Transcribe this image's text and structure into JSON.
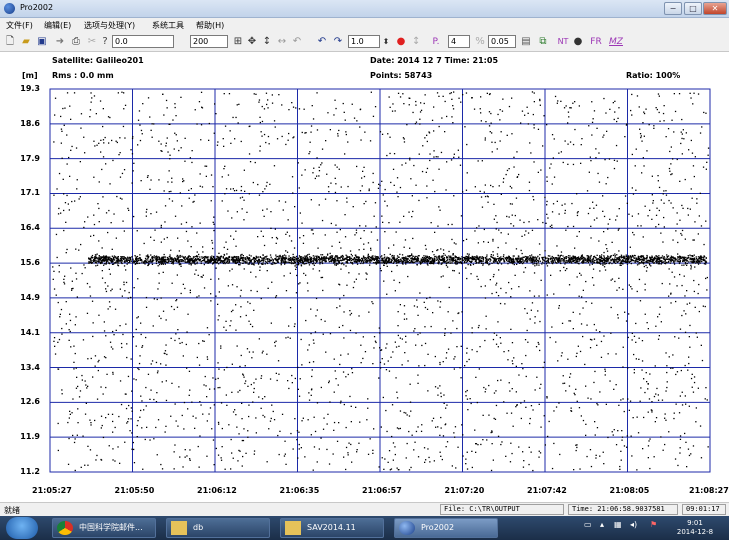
{
  "window": {
    "title": "Pro2002",
    "min": "−",
    "max": "□",
    "close": "✕"
  },
  "menu": [
    "文件(F)",
    "编辑(E)",
    "选项与处理(Y)",
    "系统工具",
    "帮助(H)"
  ],
  "toolbar": {
    "value1": "0.0",
    "value2": "200",
    "step": "1.0",
    "p_value": "4",
    "threshold": "0.05",
    "p_label": "P.",
    "nt_label": "NT",
    "fr_label": "FR",
    "mz_label": "MZ"
  },
  "info": {
    "satellite": "Satellite: Galileo201",
    "rms": "Rms :  0.0 mm",
    "unit": "[m]",
    "date": "Date: 2014 12  7     Time: 21:05",
    "points": "Points: 58743",
    "ratio": "Ratio: 100%"
  },
  "colors": {
    "grid": "#1c2aa8",
    "points": "#000000"
  },
  "chart_data": {
    "type": "scatter",
    "ylabel": "[m]",
    "yticks": [
      "19.3",
      "18.6",
      "17.9",
      "17.1",
      "16.4",
      "15.6",
      "14.9",
      "14.1",
      "13.4",
      "12.6",
      "11.9",
      "11.2"
    ],
    "xticks": [
      "21:05:27",
      "21:05:50",
      "21:06:12",
      "21:06:35",
      "21:06:57",
      "21:07:20",
      "21:07:42",
      "21:08:05",
      "21:08:27"
    ],
    "ylim": [
      11.2,
      19.3
    ],
    "xlim": [
      "21:05:27",
      "21:08:27"
    ],
    "grid": true,
    "series": [
      {
        "values_description_band": 15.7,
        "noise_range": [
          11.2,
          19.3
        ]
      }
    ]
  },
  "status": {
    "ready": "就绪",
    "file": "File: C:\\TR\\OUTPUT",
    "time": "Time: 21:06:58.9037581",
    "clock": "09:01:17"
  },
  "taskbar": {
    "items": [
      "中国科学院邮件...",
      "db",
      "SAV2014.11",
      "Pro2002"
    ],
    "clock_time": "9:01",
    "clock_date": "2014-12-8"
  }
}
